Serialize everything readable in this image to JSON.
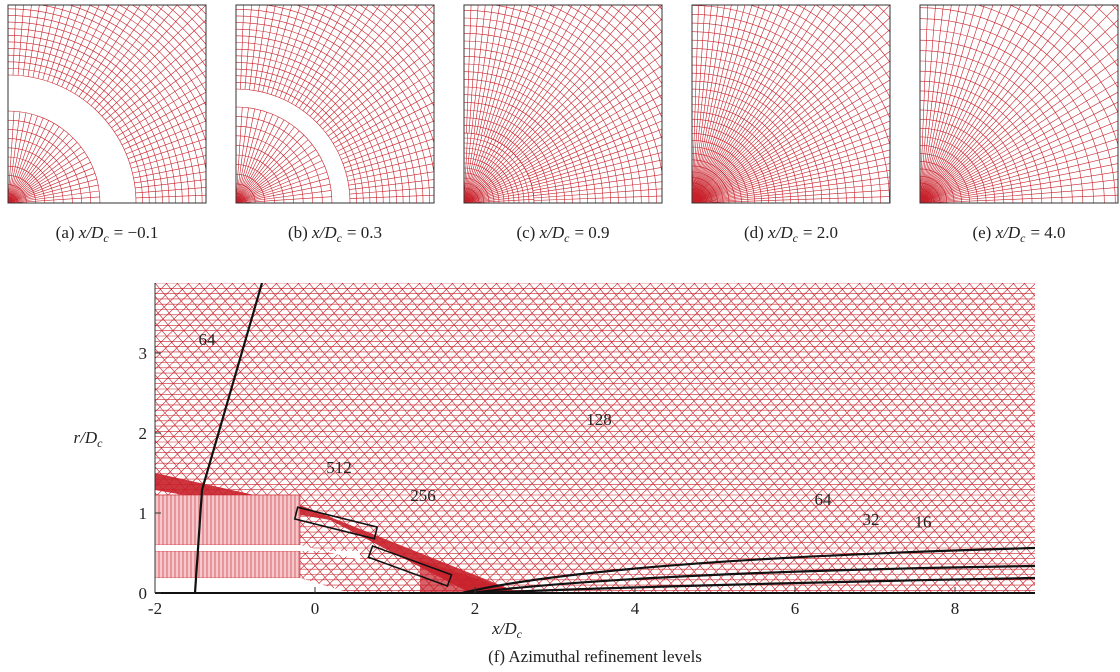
{
  "panels": [
    {
      "tag": "(a)",
      "lhs": "x/D",
      "sub": "c",
      "rhs": "= −0.1"
    },
    {
      "tag": "(b)",
      "lhs": "x/D",
      "sub": "c",
      "rhs": "= 0.3"
    },
    {
      "tag": "(c)",
      "lhs": "x/D",
      "sub": "c",
      "rhs": "= 0.9"
    },
    {
      "tag": "(d)",
      "lhs": "x/D",
      "sub": "c",
      "rhs": "= 2.0"
    },
    {
      "tag": "(e)",
      "lhs": "x/D",
      "sub": "c",
      "rhs": "= 4.0"
    }
  ],
  "figure": {
    "xlim": [
      -2,
      9
    ],
    "ylim": [
      0,
      3.875
    ],
    "xticks": [
      -2,
      0,
      2,
      4,
      6,
      8
    ],
    "yticks": [
      0,
      1,
      2,
      3
    ],
    "xlabel": {
      "main": "x/D",
      "sub": "c"
    },
    "ylabel": {
      "main": "r/D",
      "sub": "c"
    },
    "annotations": [
      {
        "text": "64",
        "x": -1.35,
        "y": 3.1
      },
      {
        "text": "128",
        "x": 3.55,
        "y": 2.1
      },
      {
        "text": "512",
        "x": 0.3,
        "y": 1.5
      },
      {
        "text": "256",
        "x": 1.35,
        "y": 1.15
      },
      {
        "text": "64",
        "x": 6.35,
        "y": 1.1
      },
      {
        "text": "32",
        "x": 6.95,
        "y": 0.85
      },
      {
        "text": "16",
        "x": 7.6,
        "y": 0.82
      }
    ],
    "caption": {
      "tag": "(f)",
      "text": "Azimuthal refinement levels"
    }
  }
}
